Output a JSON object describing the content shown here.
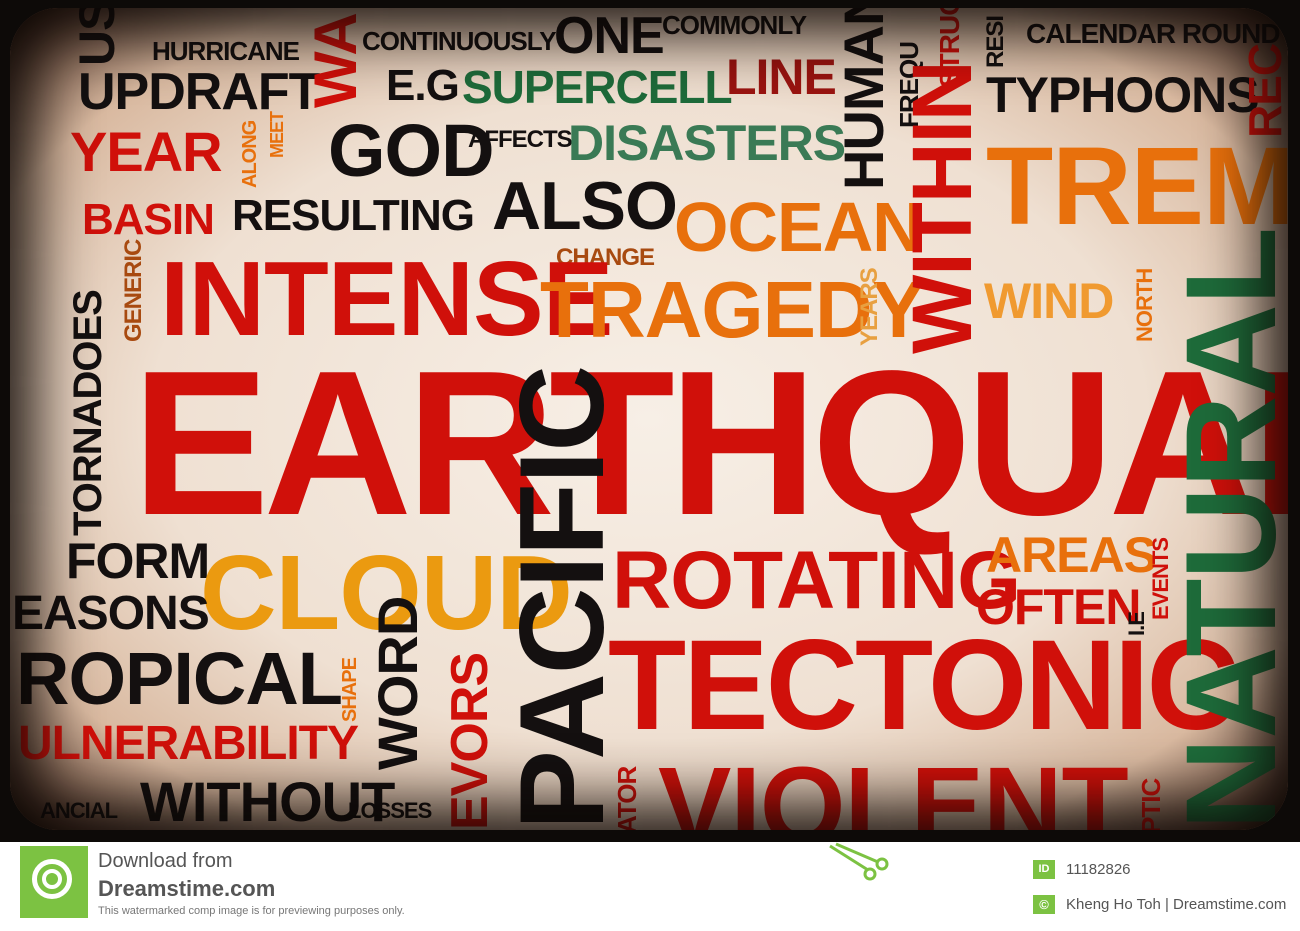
{
  "words": [
    "HURRICANE",
    "CONTINUOUSLY",
    "ONE",
    "COMMONLY",
    "CALENDAR ROUND",
    "UPDRAFT",
    "E.G",
    "SUPERCELL",
    "LINE",
    "TYPHOONS",
    "YEAR",
    "GOD",
    "AFFECTS",
    "DISASTERS",
    "TREM",
    "BASIN",
    "RESULTING",
    "ALSO",
    "OCEAN",
    "CHANGE",
    "INTENSE",
    "TRAGEDY",
    "WIND",
    "EARTHQUAKE",
    "FORM",
    "CLOUD",
    "ROTATING",
    "AREAS",
    "OFTEN",
    "EASONS",
    "ROPICAL",
    "TECTONIC",
    "ULNERABILITY",
    "WITHOUT",
    "LOSSES",
    "VIOLENT",
    "US",
    "WA",
    "HUMAN",
    "FREQU",
    "STRUC",
    "RESI",
    "REC",
    "WITHIN",
    "MEET",
    "ALONG",
    "TORNADOES",
    "GENERIC",
    "YEARS",
    "NORTH",
    "NATURAL",
    "PACIFIC",
    "WORD",
    "SHAPE",
    "EVENTS",
    "I.E",
    "ATOR",
    "PTIC",
    "ANCIAL",
    "EVORS"
  ],
  "footer": {
    "download_line1": "Download from",
    "download_line2": "Dreamstime.com",
    "disclaimer": "This watermarked comp image is for previewing purposes only.",
    "id_badge": "ID",
    "image_id": "11182826",
    "copyright_badge": "©",
    "credit": "Kheng Ho Toh | Dreamstime.com"
  },
  "colors": {
    "accent_green": "#7cc242",
    "red": "#d0100a",
    "black": "#141010",
    "orange": "#e8700c",
    "green": "#1e6b3a"
  }
}
